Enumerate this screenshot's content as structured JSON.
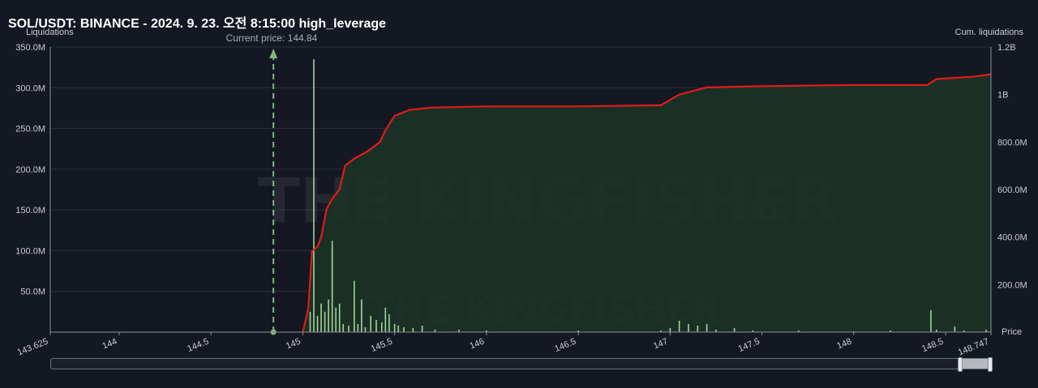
{
  "header": {
    "title": "SOL/USDT: BINANCE - 2024. 9. 23. 오전 8:15:00 high_leverage"
  },
  "watermark": {
    "text": "THE KINGFISHER",
    "suffix": ".IO"
  },
  "chart_data": {
    "type": "bar",
    "left_axis_label": "Liquidations",
    "right_axis_label": "Cum. liquidations",
    "x_axis_label": "Price",
    "current_price_label": "Current price: 144.84",
    "current_price": 144.84,
    "x_range": [
      143.625,
      148.747
    ],
    "y_left_range": [
      0,
      350000000
    ],
    "y_right_range": [
      0,
      1200000000
    ],
    "x_ticks": [
      {
        "value": 143.625,
        "label": "143.625"
      },
      {
        "value": 144,
        "label": "144"
      },
      {
        "value": 144.5,
        "label": "144.5"
      },
      {
        "value": 145,
        "label": "145"
      },
      {
        "value": 145.5,
        "label": "145.5"
      },
      {
        "value": 146,
        "label": "146"
      },
      {
        "value": 146.5,
        "label": "146.5"
      },
      {
        "value": 147,
        "label": "147"
      },
      {
        "value": 147.5,
        "label": "147.5"
      },
      {
        "value": 148,
        "label": "148"
      },
      {
        "value": 148.5,
        "label": "148.5"
      },
      {
        "value": 148.747,
        "label": "148.747"
      }
    ],
    "y_left_ticks": [
      {
        "value": 50000000,
        "label": "50.0M"
      },
      {
        "value": 100000000,
        "label": "100.0M"
      },
      {
        "value": 150000000,
        "label": "150.0M"
      },
      {
        "value": 200000000,
        "label": "200.0M"
      },
      {
        "value": 250000000,
        "label": "250.0M"
      },
      {
        "value": 300000000,
        "label": "300.0M"
      },
      {
        "value": 350000000,
        "label": "350.0M"
      }
    ],
    "y_right_ticks": [
      {
        "value": 200000000,
        "label": "200.0M"
      },
      {
        "value": 400000000,
        "label": "400.0M"
      },
      {
        "value": 600000000,
        "label": "600.0M"
      },
      {
        "value": 800000000,
        "label": "800.0M"
      },
      {
        "value": 1000000000,
        "label": "1B"
      },
      {
        "value": 1200000000,
        "label": "1.2B"
      }
    ],
    "bars": [
      {
        "x": 145.04,
        "y": 25000000
      },
      {
        "x": 145.06,
        "y": 335000000
      },
      {
        "x": 145.08,
        "y": 20000000
      },
      {
        "x": 145.1,
        "y": 35000000
      },
      {
        "x": 145.12,
        "y": 25000000
      },
      {
        "x": 145.14,
        "y": 40000000
      },
      {
        "x": 145.16,
        "y": 112000000
      },
      {
        "x": 145.18,
        "y": 30000000
      },
      {
        "x": 145.2,
        "y": 35000000
      },
      {
        "x": 145.22,
        "y": 10000000
      },
      {
        "x": 145.25,
        "y": 8000000
      },
      {
        "x": 145.28,
        "y": 63000000
      },
      {
        "x": 145.3,
        "y": 10000000
      },
      {
        "x": 145.32,
        "y": 40000000
      },
      {
        "x": 145.34,
        "y": 6000000
      },
      {
        "x": 145.37,
        "y": 20000000
      },
      {
        "x": 145.4,
        "y": 15000000
      },
      {
        "x": 145.43,
        "y": 12000000
      },
      {
        "x": 145.45,
        "y": 30000000
      },
      {
        "x": 145.47,
        "y": 22000000
      },
      {
        "x": 145.5,
        "y": 10000000
      },
      {
        "x": 145.52,
        "y": 8000000
      },
      {
        "x": 145.55,
        "y": 6000000
      },
      {
        "x": 145.6,
        "y": 5000000
      },
      {
        "x": 145.65,
        "y": 8000000
      },
      {
        "x": 145.72,
        "y": 3000000
      },
      {
        "x": 145.85,
        "y": 3000000
      },
      {
        "x": 146.0,
        "y": 2000000
      },
      {
        "x": 146.5,
        "y": 2000000
      },
      {
        "x": 146.95,
        "y": 2000000
      },
      {
        "x": 147.0,
        "y": 5000000
      },
      {
        "x": 147.05,
        "y": 14000000
      },
      {
        "x": 147.1,
        "y": 10000000
      },
      {
        "x": 147.15,
        "y": 8000000
      },
      {
        "x": 147.2,
        "y": 10000000
      },
      {
        "x": 147.25,
        "y": 3000000
      },
      {
        "x": 147.35,
        "y": 5000000
      },
      {
        "x": 147.45,
        "y": 2000000
      },
      {
        "x": 147.7,
        "y": 2000000
      },
      {
        "x": 148.0,
        "y": 1000000
      },
      {
        "x": 148.2,
        "y": 2000000
      },
      {
        "x": 148.42,
        "y": 27000000
      },
      {
        "x": 148.45,
        "y": 3000000
      },
      {
        "x": 148.55,
        "y": 7000000
      },
      {
        "x": 148.6,
        "y": 2000000
      },
      {
        "x": 148.72,
        "y": 3000000
      }
    ],
    "cumulative": [
      {
        "x": 145.0,
        "y": 0
      },
      {
        "x": 145.03,
        "y": 100000000
      },
      {
        "x": 145.05,
        "y": 340000000
      },
      {
        "x": 145.08,
        "y": 360000000
      },
      {
        "x": 145.1,
        "y": 400000000
      },
      {
        "x": 145.13,
        "y": 520000000
      },
      {
        "x": 145.16,
        "y": 560000000
      },
      {
        "x": 145.2,
        "y": 600000000
      },
      {
        "x": 145.23,
        "y": 700000000
      },
      {
        "x": 145.28,
        "y": 730000000
      },
      {
        "x": 145.35,
        "y": 760000000
      },
      {
        "x": 145.42,
        "y": 800000000
      },
      {
        "x": 145.45,
        "y": 850000000
      },
      {
        "x": 145.5,
        "y": 910000000
      },
      {
        "x": 145.58,
        "y": 935000000
      },
      {
        "x": 145.7,
        "y": 945000000
      },
      {
        "x": 146.0,
        "y": 950000000
      },
      {
        "x": 146.5,
        "y": 950000000
      },
      {
        "x": 146.95,
        "y": 955000000
      },
      {
        "x": 147.05,
        "y": 1000000000
      },
      {
        "x": 147.2,
        "y": 1030000000
      },
      {
        "x": 147.5,
        "y": 1035000000
      },
      {
        "x": 148.0,
        "y": 1040000000
      },
      {
        "x": 148.4,
        "y": 1040000000
      },
      {
        "x": 148.45,
        "y": 1065000000
      },
      {
        "x": 148.55,
        "y": 1070000000
      },
      {
        "x": 148.65,
        "y": 1075000000
      },
      {
        "x": 148.747,
        "y": 1085000000
      }
    ],
    "grid": true,
    "colors": {
      "background": "#141822",
      "bars": "#9fd39a",
      "cumulative_line": "#e01b1b",
      "cumulative_fill": "#1c3326",
      "current_price_line": "#7ab87a",
      "grid": "#2a2f3b"
    }
  }
}
